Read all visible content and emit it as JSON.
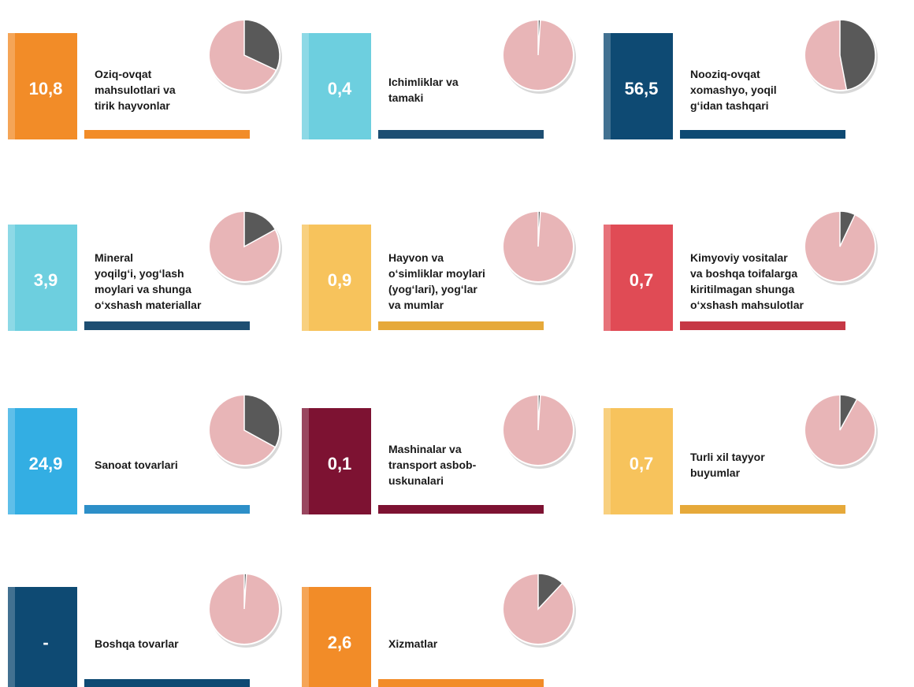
{
  "tiles": [
    {
      "value_label": "10,8",
      "label_lines": [
        "Oziq-ovqat",
        "mahsulotlari va",
        "tirik hayvonlar"
      ],
      "share": 32,
      "box_color": "#f28c28",
      "bar_color": "#f28c28"
    },
    {
      "value_label": "0,4",
      "label_lines": [
        "Ichimliklar va",
        "tamaki"
      ],
      "share": 1,
      "box_color": "#6dcfdf",
      "bar_color": "#1d4e72"
    },
    {
      "value_label": "56,5",
      "label_lines": [
        "Nooziq-ovqat",
        "xomashyo, yoqil",
        "g‘idan tashqari"
      ],
      "share": 47,
      "box_color": "#0e4a73",
      "bar_color": "#0e4a73"
    },
    {
      "value_label": "3,9",
      "label_lines": [
        "Mineral",
        "yoqilg‘i, yog‘lash",
        "moylari va shunga",
        "o‘xshash materiallar"
      ],
      "share": 17,
      "box_color": "#6dcfdf",
      "bar_color": "#1d4e72"
    },
    {
      "value_label": "0,9",
      "label_lines": [
        "Hayvon va",
        "o‘simliklar moylari",
        "(yog‘lari), yog‘lar",
        "va mumlar"
      ],
      "share": 1,
      "box_color": "#f7c35c",
      "bar_color": "#e6a93a"
    },
    {
      "value_label": "0,7",
      "label_lines": [
        "Kimyoviy vositalar",
        "va boshqa toifalarga",
        "kiritilmagan shunga",
        "o‘xshash mahsulotlar"
      ],
      "share": 7,
      "box_color": "#e04b55",
      "bar_color": "#c63845"
    },
    {
      "value_label": "24,9",
      "label_lines": [
        "Sanoat tovarlari"
      ],
      "share": 33,
      "box_color": "#33aee3",
      "bar_color": "#2d8fc8"
    },
    {
      "value_label": "0,1",
      "label_lines": [
        "Mashinalar va",
        "transport asbob-",
        "uskunalari"
      ],
      "share": 1,
      "box_color": "#7d1232",
      "bar_color": "#7d1232"
    },
    {
      "value_label": "0,7",
      "label_lines": [
        "Turli xil tayyor",
        "buyumlar"
      ],
      "share": 8,
      "box_color": "#f7c35c",
      "bar_color": "#e6a93a"
    },
    {
      "value_label": "-",
      "label_lines": [
        "Boshqa tovarlar"
      ],
      "share": 1,
      "box_color": "#0e4a73",
      "bar_color": "#0e4a73"
    },
    {
      "value_label": "2,6",
      "label_lines": [
        "Xizmatlar"
      ],
      "share": 12,
      "box_color": "#f28c28",
      "bar_color": "#f28c28"
    }
  ]
}
